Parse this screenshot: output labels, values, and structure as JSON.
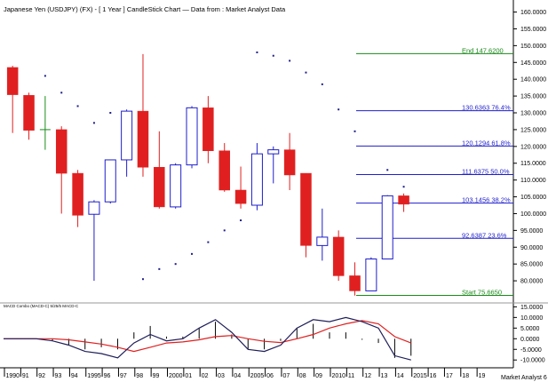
{
  "chart_data": {
    "type": "candlestick",
    "title": "Japanese Yen (USDJPY) (FX) -  [ 1 Year ] CandleStick Chart — Data from : Market Analyst Data",
    "ylim": [
      75,
      162
    ],
    "yticks": [
      "160.0000",
      "155.0000",
      "150.0000",
      "145.0000",
      "140.0000",
      "135.0000",
      "130.0000",
      "125.0000",
      "120.0000",
      "115.0000",
      "110.0000",
      "105.0000",
      "100.0000",
      "95.0000",
      "90.0000",
      "85.0000",
      "80.0000"
    ],
    "yticks_values": [
      160,
      155,
      150,
      145,
      140,
      135,
      130,
      125,
      120,
      115,
      110,
      105,
      100,
      95,
      90,
      85,
      80
    ],
    "x_labels": [
      "1990",
      "91",
      "92",
      "93",
      "94",
      "1995",
      "96",
      "97",
      "98",
      "99",
      "2000",
      "01",
      "02",
      "03",
      "04",
      "2005",
      "06",
      "07",
      "08",
      "09",
      "2010",
      "11",
      "12",
      "13",
      "14",
      "2015",
      "16",
      "17",
      "18",
      "19"
    ],
    "candles": [
      {
        "year": 1990,
        "o": 143.5,
        "h": 144,
        "l": 124,
        "c": 135.4
      },
      {
        "year": 1991,
        "o": 135.2,
        "h": 136,
        "l": 122,
        "c": 124.8
      },
      {
        "year": 1992,
        "o": 125.0,
        "h": 135,
        "l": 119,
        "c": 125.0
      },
      {
        "year": 1993,
        "o": 125.0,
        "h": 126,
        "l": 100,
        "c": 112.0
      },
      {
        "year": 1994,
        "o": 112.0,
        "h": 113,
        "l": 96,
        "c": 99.5
      },
      {
        "year": 1995,
        "o": 99.8,
        "h": 104,
        "l": 80,
        "c": 103.5
      },
      {
        "year": 1996,
        "o": 103.5,
        "h": 116,
        "l": 103,
        "c": 116.0
      },
      {
        "year": 1997,
        "o": 116.0,
        "h": 131,
        "l": 111,
        "c": 130.5
      },
      {
        "year": 1998,
        "o": 130.5,
        "h": 147.5,
        "l": 111,
        "c": 113.8
      },
      {
        "year": 1999,
        "o": 113.8,
        "h": 124.5,
        "l": 101.5,
        "c": 102.0
      },
      {
        "year": 2000,
        "o": 102.0,
        "h": 115,
        "l": 101.5,
        "c": 114.5
      },
      {
        "year": 2001,
        "o": 114.5,
        "h": 132,
        "l": 113.5,
        "c": 131.5
      },
      {
        "year": 2002,
        "o": 131.5,
        "h": 135,
        "l": 115,
        "c": 118.7
      },
      {
        "year": 2003,
        "o": 118.7,
        "h": 121,
        "l": 106.5,
        "c": 107.0
      },
      {
        "year": 2004,
        "o": 107.0,
        "h": 114,
        "l": 101.5,
        "c": 103.0
      },
      {
        "year": 2005,
        "o": 102.5,
        "h": 121,
        "l": 101,
        "c": 117.8
      },
      {
        "year": 2006,
        "o": 117.8,
        "h": 120,
        "l": 109,
        "c": 119.0
      },
      {
        "year": 2007,
        "o": 119.0,
        "h": 124,
        "l": 107,
        "c": 111.5
      },
      {
        "year": 2008,
        "o": 112.0,
        "h": 112,
        "l": 87,
        "c": 90.5
      },
      {
        "year": 2009,
        "o": 90.5,
        "h": 101.5,
        "l": 86,
        "c": 93.0
      },
      {
        "year": 2010,
        "o": 93.0,
        "h": 95,
        "l": 80,
        "c": 81.5
      },
      {
        "year": 2011,
        "o": 81.5,
        "h": 85.5,
        "l": 75.6,
        "c": 77.0
      },
      {
        "year": 2012,
        "o": 77.0,
        "h": 87,
        "l": 77,
        "c": 86.5
      },
      {
        "year": 2013,
        "o": 86.5,
        "h": 105.5,
        "l": 86.5,
        "c": 105.3
      },
      {
        "year": 2014,
        "o": 105.3,
        "h": 106,
        "l": 100.5,
        "c": 102.8
      }
    ],
    "parabolic_sar": [
      {
        "year": 1992,
        "v": 141
      },
      {
        "year": 1993,
        "v": 136
      },
      {
        "year": 1994,
        "v": 132
      },
      {
        "year": 1995,
        "v": 127
      },
      {
        "year": 1996,
        "v": 130
      },
      {
        "year": 1998,
        "v": 80.5
      },
      {
        "year": 1999,
        "v": 83.5
      },
      {
        "year": 2000,
        "v": 85
      },
      {
        "year": 2001,
        "v": 88
      },
      {
        "year": 2002,
        "v": 91.5
      },
      {
        "year": 2003,
        "v": 95
      },
      {
        "year": 2004,
        "v": 98
      },
      {
        "year": 2005,
        "v": 148
      },
      {
        "year": 2006,
        "v": 147
      },
      {
        "year": 2007,
        "v": 145.5
      },
      {
        "year": 2008,
        "v": 142
      },
      {
        "year": 2009,
        "v": 138.5
      },
      {
        "year": 2010,
        "v": 131
      },
      {
        "year": 2011,
        "v": 124.5
      },
      {
        "year": 2013,
        "v": 113
      },
      {
        "year": 2014,
        "v": 108
      }
    ],
    "fibonacci": [
      {
        "label": "End 147.6200",
        "value": 147.62,
        "color": "#1a8a1a"
      },
      {
        "label": "130.6363 76.4%",
        "value": 130.6363,
        "color": "#1e1ecc"
      },
      {
        "label": "120.1294 61.8%",
        "value": 120.1294,
        "color": "#1e1ecc"
      },
      {
        "label": "111.6375 50.0%",
        "value": 111.6375,
        "color": "#1e1ecc"
      },
      {
        "label": "103.1456 38.2%",
        "value": 103.1456,
        "color": "#1e1ecc"
      },
      {
        "label": "92.6387 23.6%",
        "value": 92.6387,
        "color": "#1e1ecc"
      },
      {
        "label": "Start 75.6650",
        "value": 75.665,
        "color": "#1a8a1a"
      }
    ],
    "macd": {
      "label": "MACD Combo (MACD-C) 5/25/5 MACD-C",
      "ylim": [
        -12,
        16
      ],
      "yticks": [
        "15.0000",
        "10.0000",
        "5.0000",
        "0.0000",
        "-5.0000",
        "-10.0000"
      ],
      "yticks_values": [
        15,
        10,
        5,
        0,
        -5,
        -10
      ],
      "macd_line": [
        0,
        0,
        0,
        -1,
        -3,
        -6,
        -7,
        -9,
        -2,
        2,
        -1,
        0,
        5,
        9,
        3,
        -5,
        -6,
        -3,
        5,
        9,
        8,
        10,
        8,
        5,
        -8,
        -10
      ],
      "signal_line": [
        0,
        0,
        0,
        0,
        -0.5,
        -1.5,
        -2.5,
        -4,
        -6,
        -4,
        -2,
        -1.5,
        -0.5,
        1,
        1.5,
        0,
        -1.2,
        -1.8,
        0,
        2,
        5,
        7,
        8.5,
        7,
        1,
        -2
      ],
      "histogram": [
        0,
        0,
        0,
        -1,
        -3,
        -5,
        -4,
        -5,
        3,
        6,
        1,
        1,
        5,
        8,
        2,
        -5,
        -5,
        -1,
        5,
        7,
        3,
        3,
        -0.5,
        -2,
        -9,
        -8
      ]
    },
    "colors": {
      "up": "#1e1ecc",
      "down": "#e02020",
      "macd_line": "#1e1e5a",
      "signal_line": "#e02020",
      "sar": "#1e1e8a",
      "grid_bg": "#ffffff"
    },
    "footer": "Market Analyst 6"
  }
}
